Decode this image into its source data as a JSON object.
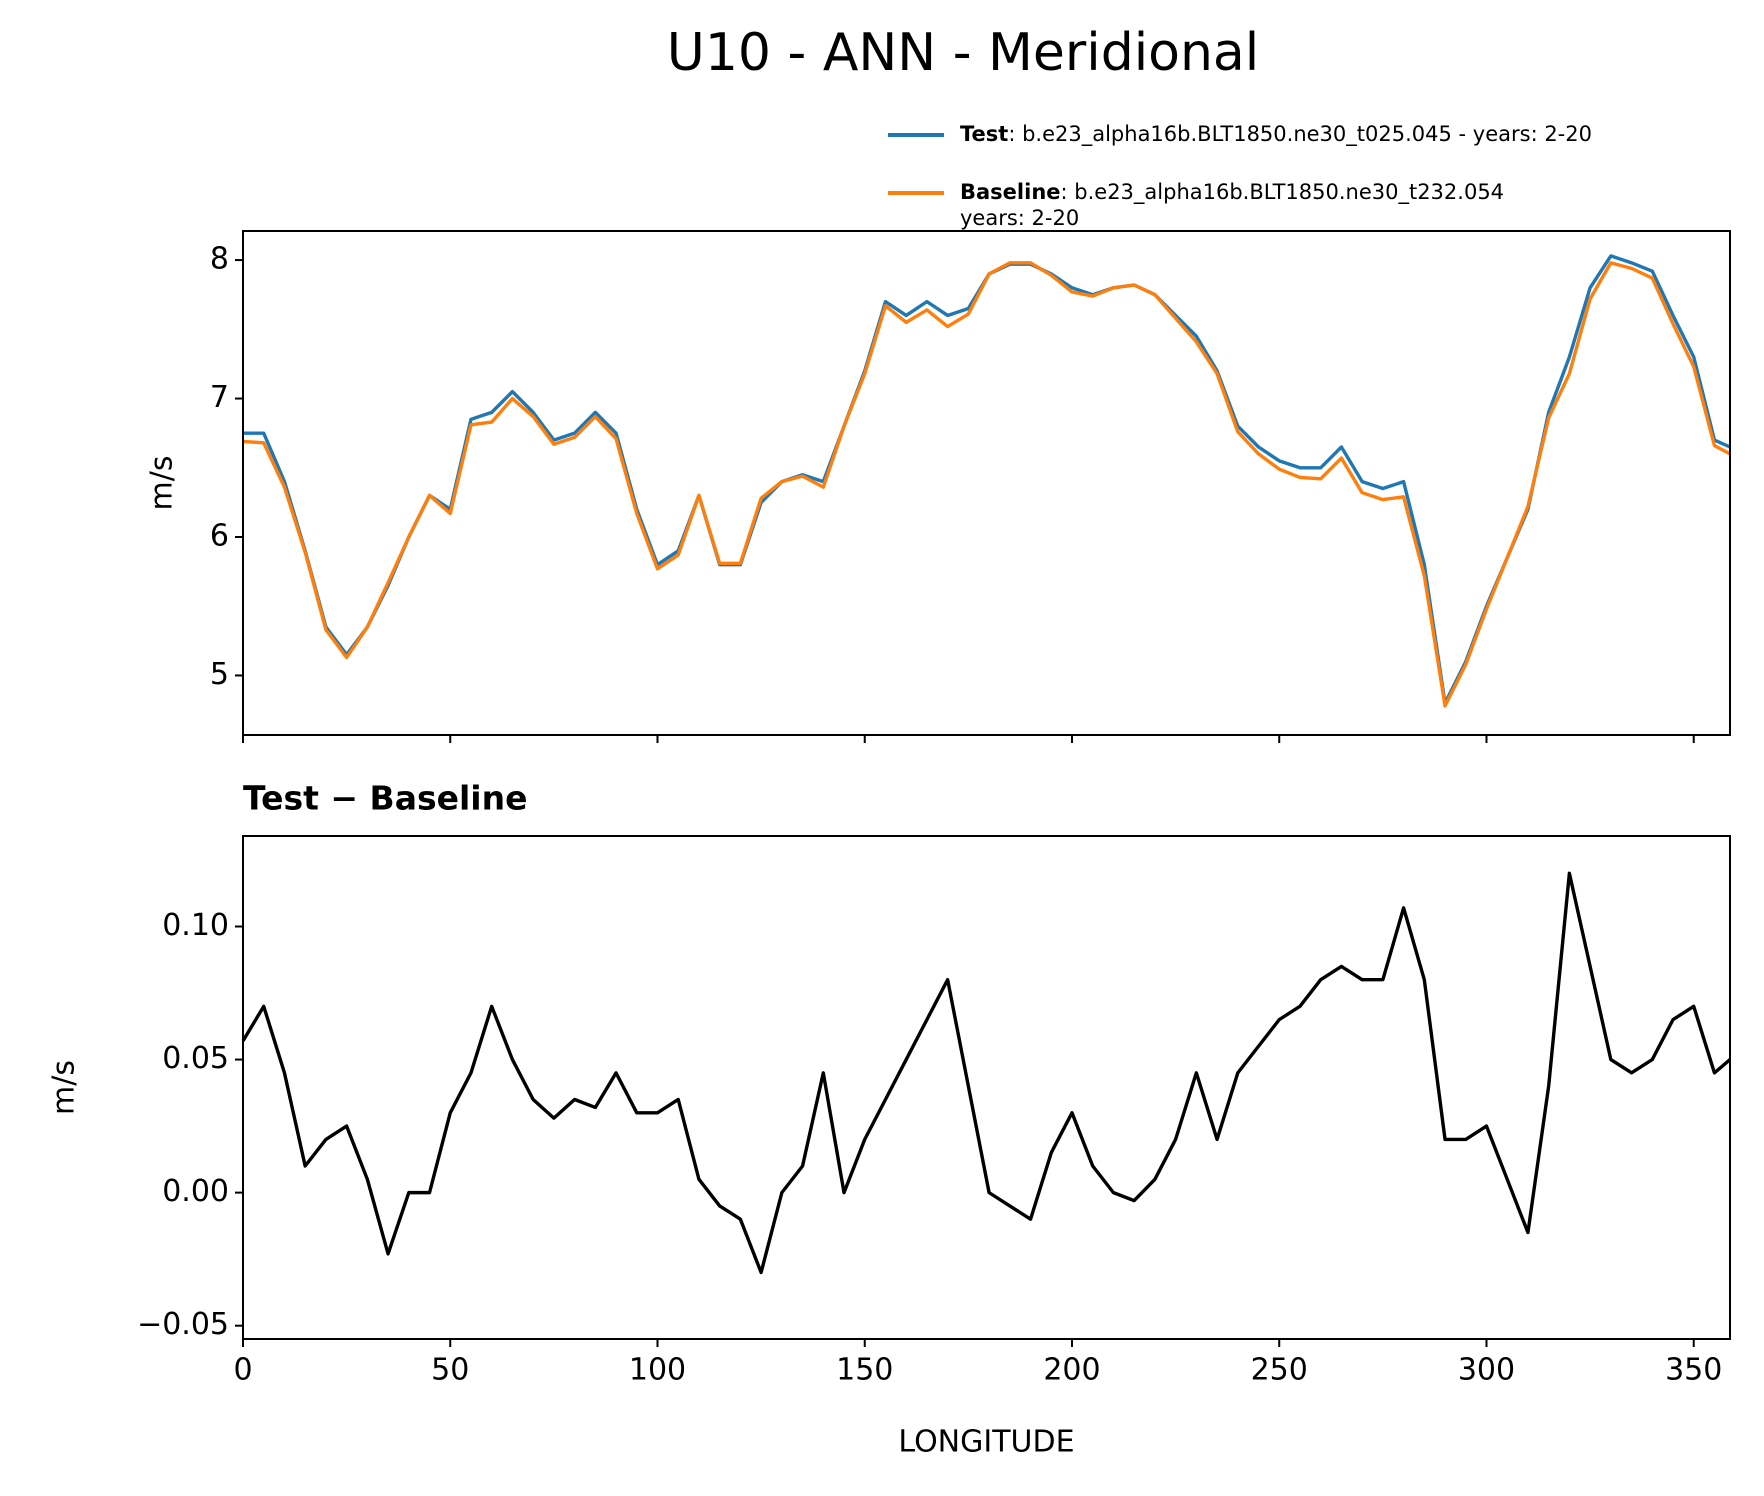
{
  "title": "U10 - ANN - Meridional",
  "chart_data": [
    {
      "type": "line",
      "ylabel": "m/s",
      "xlim": [
        0,
        358.75
      ],
      "ylim": [
        4.57,
        8.21
      ],
      "xticks": [
        0,
        50,
        100,
        150,
        200,
        250,
        300,
        350
      ],
      "show_xtick_labels": false,
      "yticks": [
        5,
        6,
        7,
        8
      ],
      "legend": "upper right",
      "x": [
        0,
        5,
        10,
        15,
        20,
        25,
        30,
        35,
        40,
        45,
        50,
        55,
        60,
        65,
        70,
        75,
        80,
        85,
        90,
        95,
        100,
        105,
        110,
        115,
        120,
        125,
        130,
        135,
        140,
        145,
        150,
        155,
        160,
        165,
        170,
        175,
        180,
        185,
        190,
        195,
        200,
        205,
        210,
        215,
        220,
        225,
        230,
        235,
        240,
        245,
        250,
        255,
        260,
        265,
        270,
        275,
        280,
        285,
        290,
        295,
        300,
        305,
        310,
        315,
        320,
        325,
        330,
        335,
        340,
        345,
        350,
        355,
        358.75
      ],
      "series": [
        {
          "name": "Test",
          "description": [
            ": b.e23_alpha16b.BLT1850.ne30_t025.045 - years: 2-20"
          ],
          "color": "#1f77b4",
          "values": [
            6.75,
            6.75,
            6.4,
            5.9,
            5.35,
            5.15,
            5.35,
            5.65,
            6.0,
            6.3,
            6.2,
            6.85,
            6.9,
            7.05,
            6.9,
            6.7,
            6.75,
            6.9,
            6.75,
            6.2,
            5.8,
            5.9,
            6.3,
            5.8,
            5.8,
            6.25,
            6.4,
            6.45,
            6.4,
            6.8,
            7.2,
            7.7,
            7.6,
            7.7,
            7.6,
            7.65,
            7.9,
            7.97,
            7.97,
            7.9,
            7.8,
            7.75,
            7.8,
            7.82,
            7.75,
            7.6,
            7.45,
            7.2,
            6.8,
            6.65,
            6.55,
            6.5,
            6.5,
            6.65,
            6.4,
            6.35,
            6.4,
            5.8,
            4.8,
            5.1,
            5.5,
            5.85,
            6.2,
            6.9,
            7.3,
            7.8,
            8.03,
            7.98,
            7.92,
            7.6,
            7.3,
            6.7,
            6.65
          ]
        },
        {
          "name": "Baseline",
          "description": [
            ": b.e23_alpha16b.BLT1850.ne30_t232.054",
            "years: 2-20"
          ],
          "color": "#ff7f0e",
          "values": [
            6.69,
            6.68,
            6.36,
            5.89,
            5.33,
            5.13,
            5.35,
            5.67,
            6.0,
            6.3,
            6.17,
            6.81,
            6.83,
            7.0,
            6.87,
            6.67,
            6.72,
            6.87,
            6.71,
            6.17,
            5.77,
            5.87,
            6.3,
            5.81,
            5.81,
            6.28,
            6.4,
            6.44,
            6.36,
            6.8,
            7.18,
            7.67,
            7.55,
            7.64,
            7.52,
            7.61,
            7.9,
            7.98,
            7.98,
            7.89,
            7.77,
            7.74,
            7.8,
            7.82,
            7.75,
            7.58,
            7.41,
            7.18,
            6.76,
            6.6,
            6.49,
            6.43,
            6.42,
            6.57,
            6.32,
            6.27,
            6.29,
            5.72,
            4.78,
            5.08,
            5.48,
            5.85,
            6.22,
            6.86,
            7.18,
            7.72,
            7.98,
            7.94,
            7.87,
            7.54,
            7.23,
            6.66,
            6.6
          ]
        }
      ]
    },
    {
      "type": "line",
      "title": "Test − Baseline",
      "ylabel": "m/s",
      "xlabel": "LONGITUDE",
      "xlim": [
        0,
        358.75
      ],
      "ylim": [
        -0.055,
        0.134
      ],
      "xticks": [
        0,
        50,
        100,
        150,
        200,
        250,
        300,
        350
      ],
      "show_xtick_labels": true,
      "yticks": [
        {
          "value": -0.05,
          "label": "−0.05"
        },
        {
          "value": 0,
          "label": "0.00"
        },
        {
          "value": 0.05,
          "label": "0.05"
        },
        {
          "value": 0.1,
          "label": "0.10"
        }
      ],
      "x": [
        0,
        5,
        10,
        15,
        20,
        25,
        30,
        35,
        40,
        45,
        50,
        55,
        60,
        65,
        70,
        75,
        80,
        85,
        90,
        95,
        100,
        105,
        110,
        115,
        120,
        125,
        130,
        135,
        140,
        145,
        150,
        155,
        160,
        165,
        170,
        175,
        180,
        185,
        190,
        195,
        200,
        205,
        210,
        215,
        220,
        225,
        230,
        235,
        240,
        245,
        250,
        255,
        260,
        265,
        270,
        275,
        280,
        285,
        290,
        295,
        300,
        305,
        310,
        315,
        320,
        325,
        330,
        335,
        340,
        345,
        350,
        355,
        358.75
      ],
      "series": [
        {
          "color": "#000000",
          "values": [
            0.057,
            0.07,
            0.045,
            0.01,
            0.02,
            0.025,
            0.005,
            -0.023,
            0.0,
            0.0,
            0.03,
            0.045,
            0.07,
            0.05,
            0.035,
            0.028,
            0.035,
            0.032,
            0.045,
            0.03,
            0.03,
            0.035,
            0.005,
            -0.005,
            -0.01,
            -0.03,
            0.0,
            0.01,
            0.045,
            0.0,
            0.02,
            0.035,
            0.05,
            0.065,
            0.08,
            0.04,
            0.0,
            -0.005,
            -0.01,
            0.015,
            0.03,
            0.01,
            0.0,
            -0.003,
            0.005,
            0.02,
            0.045,
            0.02,
            0.045,
            0.055,
            0.065,
            0.07,
            0.08,
            0.085,
            0.08,
            0.08,
            0.107,
            0.08,
            0.02,
            0.02,
            0.025,
            0.005,
            -0.015,
            0.04,
            0.12,
            0.085,
            0.05,
            0.045,
            0.05,
            0.065,
            0.07,
            0.045,
            0.05
          ]
        }
      ]
    }
  ]
}
